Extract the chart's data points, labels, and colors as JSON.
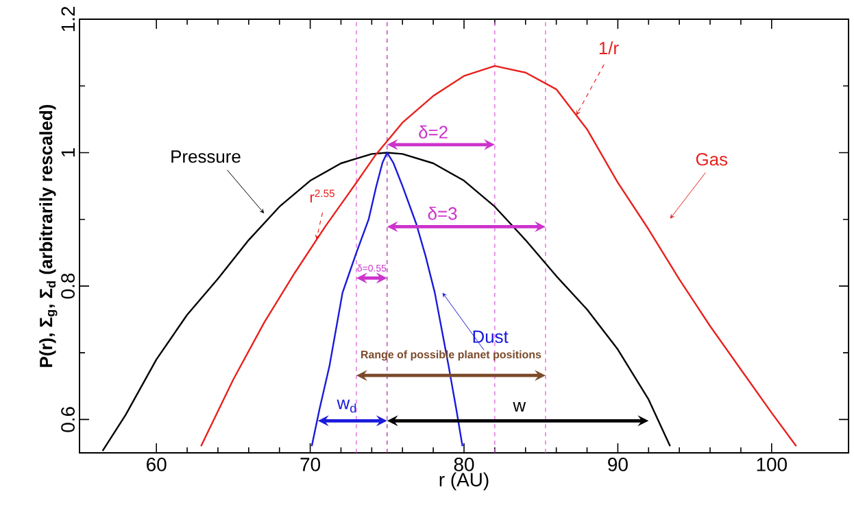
{
  "chart_data": {
    "type": "line",
    "xlabel": "r (AU)",
    "ylabel": "**P(r), Σ$_{g}$, Σ$_{d}$ (arbitrarily rescaled)**",
    "xlim": [
      55,
      105
    ],
    "ylim": [
      0.55,
      1.2
    ],
    "xticks": [
      60,
      70,
      80,
      90,
      100
    ],
    "yticks": [
      0.6,
      0.8,
      1,
      1.2
    ],
    "grid": false,
    "marker": "none",
    "line_style": "solid",
    "series": [
      {
        "name": "Pressure",
        "color": "#000000",
        "x": [
          56.5,
          58,
          60,
          62,
          64,
          66,
          68,
          70,
          72,
          74,
          75,
          76,
          78,
          80,
          82,
          84,
          86,
          88,
          90,
          92,
          93.4
        ],
        "values": [
          0.553,
          0.607,
          0.69,
          0.757,
          0.811,
          0.869,
          0.919,
          0.958,
          0.984,
          0.998,
          1.0,
          0.998,
          0.984,
          0.958,
          0.919,
          0.869,
          0.815,
          0.765,
          0.705,
          0.63,
          0.56
        ]
      },
      {
        "name": "Gas",
        "color": "#e8201c",
        "x": [
          62.9,
          65,
          67,
          69,
          71,
          73,
          74.2,
          76,
          78,
          80,
          82,
          84,
          86,
          88,
          90,
          92,
          94,
          96,
          98,
          100,
          101.6
        ],
        "values": [
          0.56,
          0.66,
          0.745,
          0.82,
          0.89,
          0.955,
          0.995,
          1.045,
          1.085,
          1.115,
          1.13,
          1.12,
          1.095,
          1.035,
          0.955,
          0.885,
          0.81,
          0.74,
          0.675,
          0.61,
          0.56
        ]
      },
      {
        "name": "Dust",
        "color": "#1a1adb",
        "x": [
          70.1,
          70.6,
          71.25,
          72.1,
          73,
          73.8,
          74.3,
          74.7,
          75,
          75.4,
          76,
          76.9,
          77.5,
          78.1,
          79,
          79.5,
          79.9
        ],
        "values": [
          0.56,
          0.615,
          0.68,
          0.79,
          0.85,
          0.9,
          0.95,
          0.985,
          1.0,
          0.985,
          0.95,
          0.893,
          0.845,
          0.79,
          0.68,
          0.615,
          0.56
        ]
      }
    ],
    "ref_lines": [
      {
        "axis": "x",
        "value": 73,
        "color": "#dd55dd",
        "line_style": "dashed"
      },
      {
        "axis": "x",
        "value": 75,
        "color": "#aa22aa",
        "line_style": "dashed"
      },
      {
        "axis": "x",
        "value": 82,
        "color": "#dd55dd",
        "line_style": "dashed"
      },
      {
        "axis": "x",
        "value": 85.3,
        "color": "#dd55dd",
        "line_style": "dashed"
      }
    ],
    "annotations": [
      {
        "text": "r$^{2.55}$",
        "x": 70.4,
        "y": 0.87
      },
      {
        "text": "1/r",
        "x": 87.3,
        "y": 1.056
      },
      "δ=2",
      "δ=3",
      "δ=0.55",
      "**Range of possible planet positions**",
      "w$_{d}$",
      "w"
    ]
  }
}
